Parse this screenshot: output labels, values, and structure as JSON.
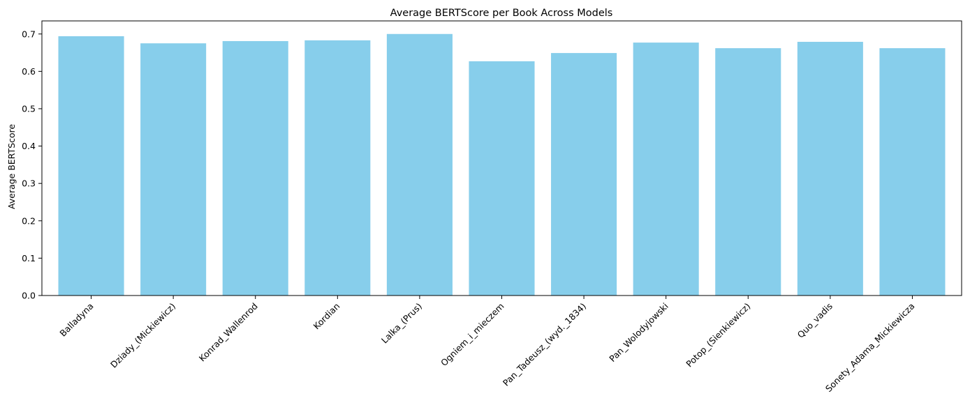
{
  "chart_data": {
    "type": "bar",
    "title": "Average BERTScore per Book Across Models",
    "xlabel": "",
    "ylabel": "Average BERTScore",
    "categories": [
      "Balladyna",
      "Dziady_(Mickiewicz)",
      "Konrad_Wallenrod",
      "Kordian",
      "Lalka_(Prus)",
      "Ogniem_i_mieczem",
      "Pan_Tadeusz_(wyd._1834)",
      "Pan_Wolodyjowski",
      "Potop_(Sienkiewicz)",
      "Quo_vadis",
      "Sonety_Adama_Mickiewicza"
    ],
    "values": [
      0.694,
      0.675,
      0.681,
      0.683,
      0.7,
      0.627,
      0.649,
      0.677,
      0.662,
      0.679,
      0.662
    ],
    "ylim": [
      0,
      0.735
    ],
    "yticks": [
      0.0,
      0.1,
      0.2,
      0.3,
      0.4,
      0.5,
      0.6,
      0.7
    ],
    "ytick_labels": [
      "0.0",
      "0.1",
      "0.2",
      "0.3",
      "0.4",
      "0.5",
      "0.6",
      "0.7"
    ],
    "bar_color": "#87ceeb",
    "grid": false,
    "legend": "none"
  }
}
